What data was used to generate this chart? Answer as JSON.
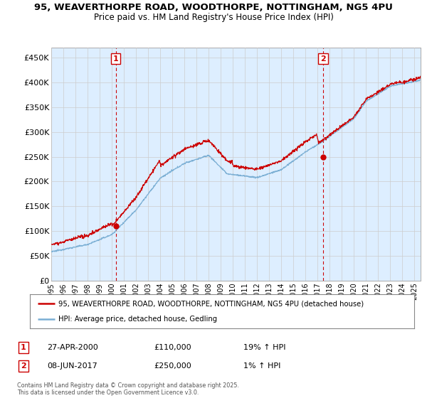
{
  "title1": "95, WEAVERTHORPE ROAD, WOODTHORPE, NOTTINGHAM, NG5 4PU",
  "title2": "Price paid vs. HM Land Registry's House Price Index (HPI)",
  "ylim": [
    0,
    470000
  ],
  "yticks": [
    0,
    50000,
    100000,
    150000,
    200000,
    250000,
    300000,
    350000,
    400000,
    450000
  ],
  "ytick_labels": [
    "£0",
    "£50K",
    "£100K",
    "£150K",
    "£200K",
    "£250K",
    "£300K",
    "£350K",
    "£400K",
    "£450K"
  ],
  "hpi_color": "#7bafd4",
  "price_color": "#cc0000",
  "chart_bg": "#ddeeff",
  "sale1_date_num": 2000.32,
  "sale1_price": 110000,
  "sale2_date_num": 2017.44,
  "sale2_price": 250000,
  "legend_label1": "95, WEAVERTHORPE ROAD, WOODTHORPE, NOTTINGHAM, NG5 4PU (detached house)",
  "legend_label2": "HPI: Average price, detached house, Gedling",
  "annotation1_label": "1",
  "annotation1_date": "27-APR-2000",
  "annotation1_price": "£110,000",
  "annotation1_hpi": "19% ↑ HPI",
  "annotation2_label": "2",
  "annotation2_date": "08-JUN-2017",
  "annotation2_price": "£250,000",
  "annotation2_hpi": "1% ↑ HPI",
  "footer": "Contains HM Land Registry data © Crown copyright and database right 2025.\nThis data is licensed under the Open Government Licence v3.0.",
  "bg_color": "#ffffff",
  "grid_color": "#cccccc",
  "vline_color": "#cc0000"
}
